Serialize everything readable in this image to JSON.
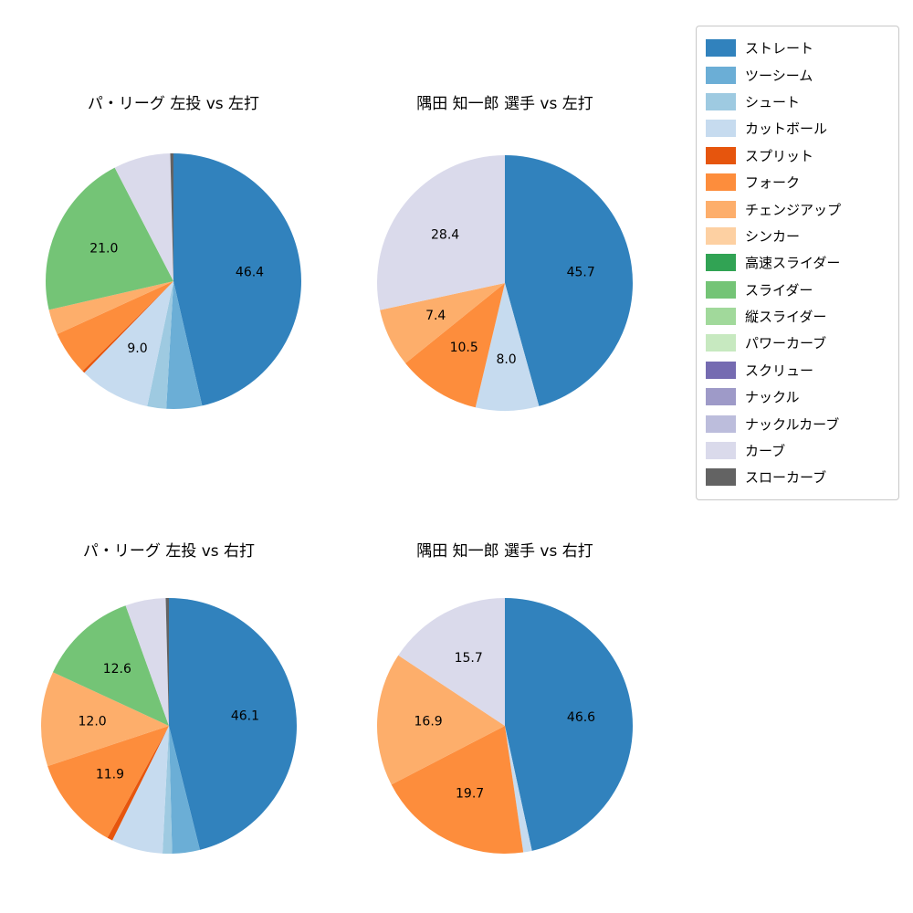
{
  "figure": {
    "background": "#ffffff",
    "text_color": "#000000"
  },
  "legend": {
    "items": [
      {
        "label": "ストレート",
        "color": "#3182bd"
      },
      {
        "label": "ツーシーム",
        "color": "#6baed6"
      },
      {
        "label": "シュート",
        "color": "#9ecae1"
      },
      {
        "label": "カットボール",
        "color": "#c6dbef"
      },
      {
        "label": "スプリット",
        "color": "#e6550d"
      },
      {
        "label": "フォーク",
        "color": "#fd8d3c"
      },
      {
        "label": "チェンジアップ",
        "color": "#fdae6b"
      },
      {
        "label": "シンカー",
        "color": "#fdd0a2"
      },
      {
        "label": "高速スライダー",
        "color": "#31a354"
      },
      {
        "label": "スライダー",
        "color": "#74c476"
      },
      {
        "label": "縦スライダー",
        "color": "#a1d99b"
      },
      {
        "label": "パワーカーブ",
        "color": "#c7e9c0"
      },
      {
        "label": "スクリュー",
        "color": "#756bb1"
      },
      {
        "label": "ナックル",
        "color": "#9e9ac8"
      },
      {
        "label": "ナックルカーブ",
        "color": "#bcbddc"
      },
      {
        "label": "カーブ",
        "color": "#dadaeb"
      },
      {
        "label": "スローカーブ",
        "color": "#636363"
      }
    ]
  },
  "chart_data": [
    {
      "type": "pie",
      "title": "パ・リーグ 左投 vs 左打",
      "start_angle": "top",
      "direction": "clockwise",
      "unit": "percent",
      "segments": [
        {
          "pitch": "ストレート",
          "value": 46.4,
          "label": "46.4"
        },
        {
          "pitch": "ツーシーム",
          "value": 4.5,
          "label": ""
        },
        {
          "pitch": "シュート",
          "value": 2.4,
          "label": ""
        },
        {
          "pitch": "カットボール",
          "value": 9.0,
          "label": "9.0"
        },
        {
          "pitch": "スプリット",
          "value": 0.3,
          "label": ""
        },
        {
          "pitch": "フォーク",
          "value": 5.6,
          "label": ""
        },
        {
          "pitch": "チェンジアップ",
          "value": 3.2,
          "label": ""
        },
        {
          "pitch": "スライダー",
          "value": 21.0,
          "label": "21.0"
        },
        {
          "pitch": "カーブ",
          "value": 7.2,
          "label": ""
        },
        {
          "pitch": "スローカーブ",
          "value": 0.4,
          "label": ""
        }
      ]
    },
    {
      "type": "pie",
      "title": "隅田 知一郎 選手 vs 左打",
      "start_angle": "top",
      "direction": "clockwise",
      "unit": "percent",
      "segments": [
        {
          "pitch": "ストレート",
          "value": 45.7,
          "label": "45.7"
        },
        {
          "pitch": "カットボール",
          "value": 8.0,
          "label": "8.0"
        },
        {
          "pitch": "フォーク",
          "value": 10.5,
          "label": "10.5"
        },
        {
          "pitch": "チェンジアップ",
          "value": 7.4,
          "label": "7.4"
        },
        {
          "pitch": "カーブ",
          "value": 28.4,
          "label": "28.4"
        }
      ]
    },
    {
      "type": "pie",
      "title": "パ・リーグ 左投 vs 右打",
      "start_angle": "top",
      "direction": "clockwise",
      "unit": "percent",
      "segments": [
        {
          "pitch": "ストレート",
          "value": 46.1,
          "label": "46.1"
        },
        {
          "pitch": "ツーシーム",
          "value": 3.5,
          "label": ""
        },
        {
          "pitch": "シュート",
          "value": 1.2,
          "label": ""
        },
        {
          "pitch": "カットボール",
          "value": 6.5,
          "label": ""
        },
        {
          "pitch": "スプリット",
          "value": 0.7,
          "label": ""
        },
        {
          "pitch": "フォーク",
          "value": 11.9,
          "label": "11.9"
        },
        {
          "pitch": "チェンジアップ",
          "value": 12.0,
          "label": "12.0"
        },
        {
          "pitch": "スライダー",
          "value": 12.6,
          "label": "12.6"
        },
        {
          "pitch": "カーブ",
          "value": 5.1,
          "label": ""
        },
        {
          "pitch": "スローカーブ",
          "value": 0.4,
          "label": ""
        }
      ]
    },
    {
      "type": "pie",
      "title": "隅田 知一郎 選手 vs 右打",
      "start_angle": "top",
      "direction": "clockwise",
      "unit": "percent",
      "segments": [
        {
          "pitch": "ストレート",
          "value": 46.6,
          "label": "46.6"
        },
        {
          "pitch": "カットボール",
          "value": 1.1,
          "label": ""
        },
        {
          "pitch": "フォーク",
          "value": 19.7,
          "label": "19.7"
        },
        {
          "pitch": "チェンジアップ",
          "value": 16.9,
          "label": "16.9"
        },
        {
          "pitch": "カーブ",
          "value": 15.7,
          "label": "15.7"
        }
      ]
    }
  ]
}
